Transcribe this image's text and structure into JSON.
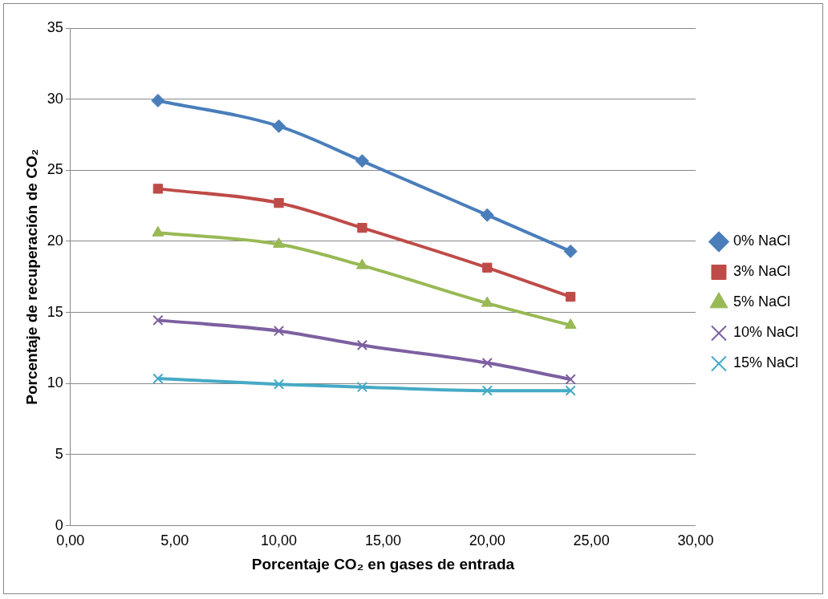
{
  "chart_data": {
    "type": "line",
    "xlabel": "Porcentaje CO₂ en gases de entrada",
    "ylabel": "Porcentaje de recuperación de CO₂",
    "x": [
      4.2,
      10,
      14,
      20,
      24
    ],
    "series": [
      {
        "name": "0% NaCl",
        "color": "#4a7ebb",
        "marker": "diamond",
        "values": [
          29.9,
          28.1,
          25.65,
          21.85,
          19.3
        ]
      },
      {
        "name": "3% NaCl",
        "color": "#be4b48",
        "marker": "square",
        "values": [
          23.7,
          22.7,
          20.95,
          18.15,
          16.1
        ]
      },
      {
        "name": "5% NaCl",
        "color": "#98b954",
        "marker": "triangle",
        "values": [
          20.6,
          19.8,
          18.3,
          15.65,
          14.1
        ]
      },
      {
        "name": "10% NaCl",
        "color": "#7d60a0",
        "marker": "cross",
        "values": [
          14.45,
          13.7,
          12.7,
          11.45,
          10.3
        ]
      },
      {
        "name": "15% NaCl",
        "color": "#46aac5",
        "marker": "cross",
        "values": [
          10.35,
          9.95,
          9.75,
          9.5,
          9.5
        ]
      }
    ],
    "xlim": [
      0,
      30
    ],
    "xticks": [
      {
        "value": 0,
        "label": "0,00"
      },
      {
        "value": 5,
        "label": "5,00"
      },
      {
        "value": 10,
        "label": "10,00"
      },
      {
        "value": 15,
        "label": "15,00"
      },
      {
        "value": 20,
        "label": "20,00"
      },
      {
        "value": 25,
        "label": "25,00"
      },
      {
        "value": 30,
        "label": "30,00"
      }
    ],
    "ylim": [
      0,
      35
    ],
    "yticks": [
      0,
      5,
      10,
      15,
      20,
      25,
      30,
      35
    ],
    "grid": "y",
    "legend": "right",
    "line_style": "solid"
  }
}
